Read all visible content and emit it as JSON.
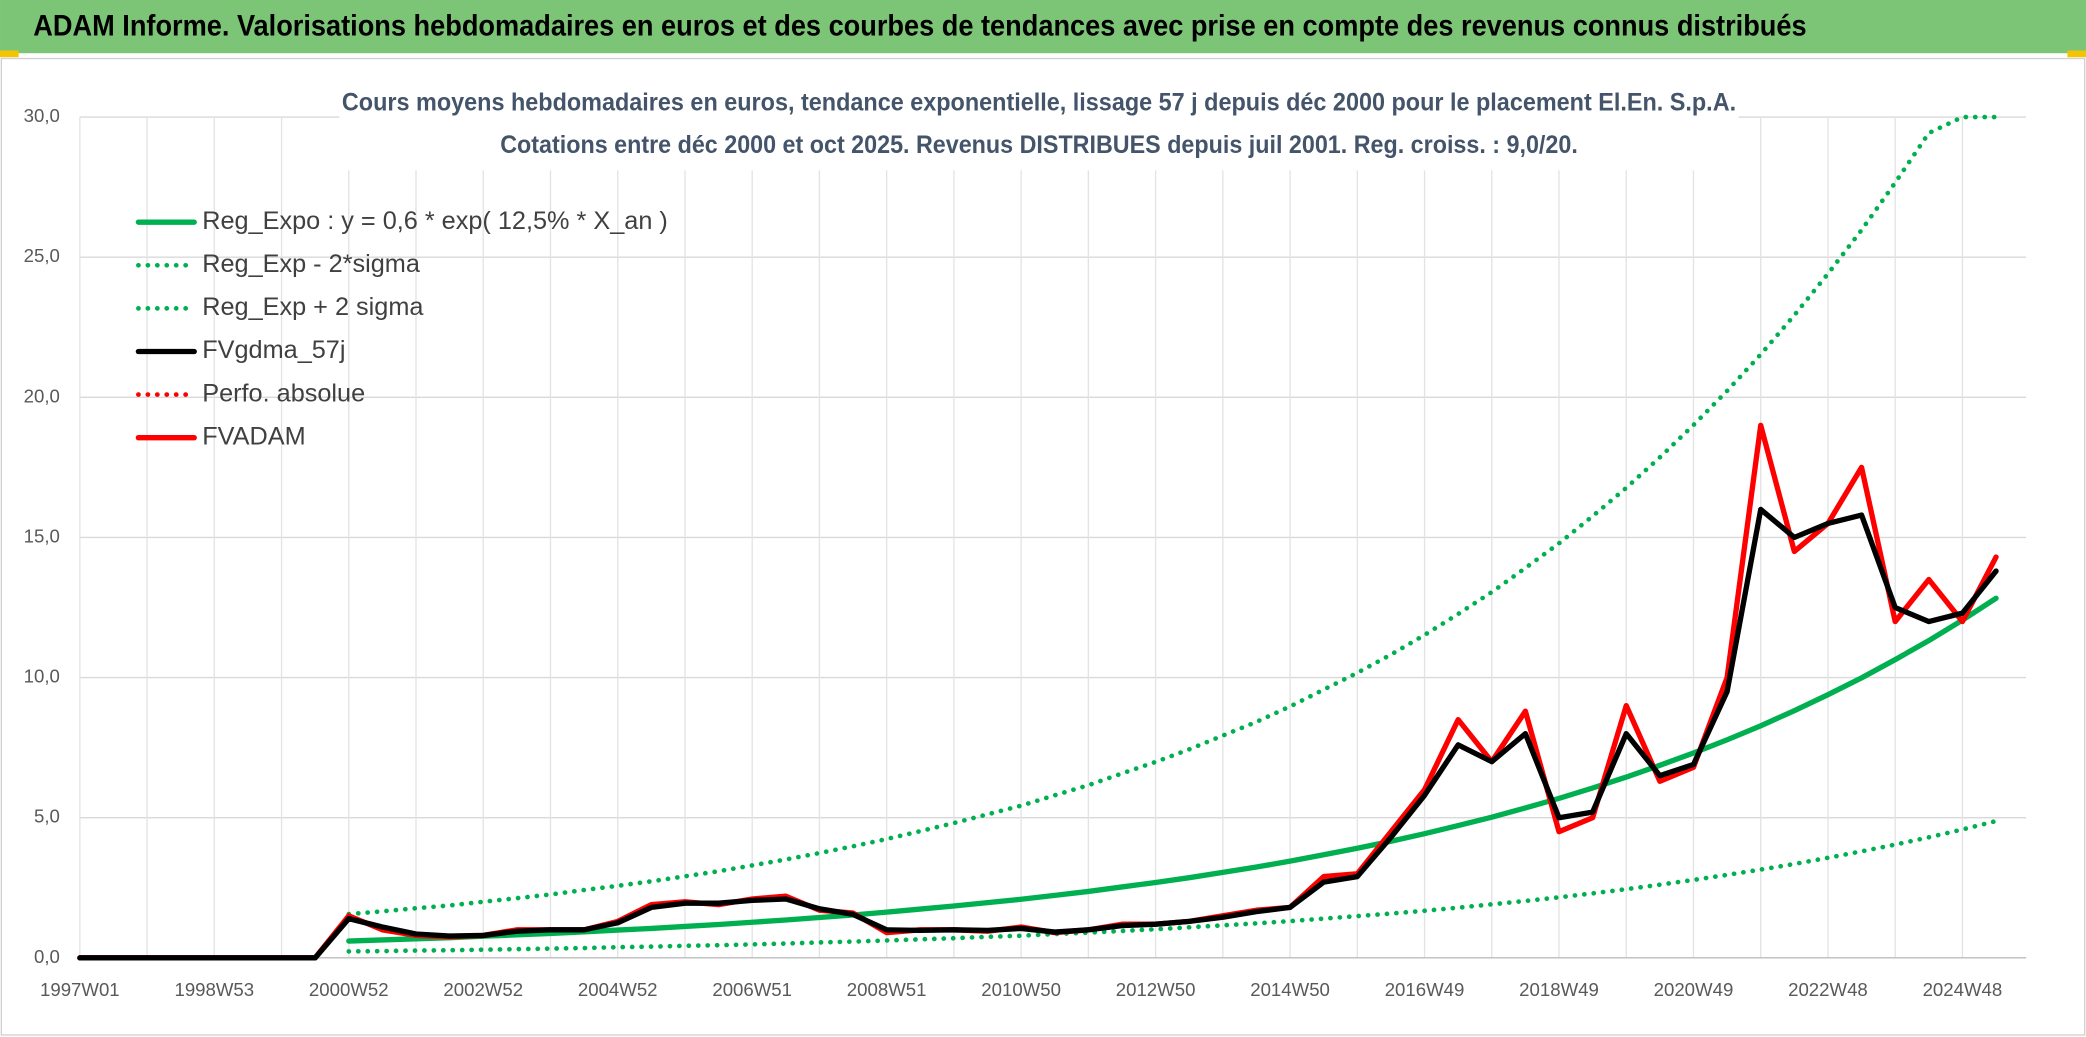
{
  "chart_data": {
    "type": "line",
    "header": "ADAM Informe. Valorisations hebdomadaires en euros et des courbes de tendances avec prise en compte des revenus connus distribués",
    "title": "Cours moyens hebdomadaires en euros, tendance exponentielle, lissage 57 j depuis déc 2000 pour le placement El.En. S.p.A.",
    "subtitle": "Cotations entre déc 2000 et oct 2025. Revenus DISTRIBUES depuis juil 2001. Reg. croiss. : 9,0/20.",
    "categories": [
      "1997W01",
      null,
      null,
      null,
      "1998W53",
      null,
      null,
      null,
      "2000W52",
      null,
      null,
      null,
      "2002W52",
      null,
      null,
      null,
      "2004W52",
      null,
      null,
      null,
      "2006W51",
      null,
      null,
      null,
      "2008W51",
      null,
      null,
      null,
      "2010W50",
      null,
      null,
      null,
      "2012W50",
      null,
      null,
      null,
      "2014W50",
      null,
      null,
      null,
      "2016W49",
      null,
      null,
      null,
      "2018W49",
      null,
      null,
      null,
      "2020W49",
      null,
      null,
      null,
      "2022W48",
      null,
      null,
      null,
      "2024W48",
      null
    ],
    "ylim": [
      0,
      30
    ],
    "yticks": [
      {
        "value": 0,
        "label": "0,0"
      },
      {
        "value": 5,
        "label": "5,0"
      },
      {
        "value": 10,
        "label": "10,0"
      },
      {
        "value": 15,
        "label": "15,0"
      },
      {
        "value": 20,
        "label": "20,0"
      },
      {
        "value": 25,
        "label": "25,0"
      },
      {
        "value": 30,
        "label": "30,0"
      }
    ],
    "grid": true,
    "legend": "top-left",
    "series": [
      {
        "name": "Reg_Expo : y = 0,6 * exp( 12,5% *  X_an )",
        "color": "#00b050",
        "style": "solid",
        "values": [
          null,
          null,
          null,
          null,
          null,
          null,
          null,
          null,
          0.6,
          0.64,
          0.68,
          0.72,
          0.77,
          0.82,
          0.87,
          0.93,
          0.99,
          1.05,
          1.12,
          1.19,
          1.27,
          1.35,
          1.44,
          1.53,
          1.63,
          1.74,
          1.85,
          1.97,
          2.09,
          2.23,
          2.37,
          2.53,
          2.69,
          2.86,
          3.05,
          3.24,
          3.45,
          3.68,
          3.91,
          4.16,
          4.43,
          4.72,
          5.02,
          5.35,
          5.69,
          6.06,
          6.45,
          6.87,
          7.31,
          7.78,
          8.28,
          8.82,
          9.39,
          9.99,
          10.64,
          11.32,
          12.05,
          12.83
        ]
      },
      {
        "name": "Reg_Exp - 2*sigma",
        "color": "#00b050",
        "style": "dotted",
        "values": [
          null,
          null,
          null,
          null,
          null,
          null,
          null,
          null,
          0.23,
          0.24,
          0.26,
          0.27,
          0.29,
          0.31,
          0.33,
          0.35,
          0.38,
          0.4,
          0.43,
          0.45,
          0.48,
          0.51,
          0.55,
          0.58,
          0.62,
          0.66,
          0.7,
          0.75,
          0.79,
          0.85,
          0.9,
          0.96,
          1.02,
          1.09,
          1.16,
          1.23,
          1.31,
          1.4,
          1.49,
          1.58,
          1.68,
          1.79,
          1.91,
          2.03,
          2.16,
          2.3,
          2.45,
          2.61,
          2.78,
          2.96,
          3.15,
          3.35,
          3.57,
          3.8,
          4.04,
          4.3,
          4.58,
          4.88
        ]
      },
      {
        "name": "Reg_Exp + 2 sigma",
        "color": "#00b050",
        "style": "dotted",
        "values": [
          null,
          null,
          null,
          null,
          null,
          null,
          null,
          null,
          1.56,
          1.66,
          1.77,
          1.87,
          2.0,
          2.13,
          2.26,
          2.42,
          2.57,
          2.73,
          2.91,
          3.09,
          3.3,
          3.51,
          3.74,
          3.98,
          4.24,
          4.52,
          4.81,
          5.12,
          5.43,
          5.8,
          6.16,
          6.58,
          6.99,
          7.44,
          7.93,
          8.42,
          8.97,
          9.57,
          10.17,
          10.82,
          11.52,
          12.27,
          13.05,
          13.91,
          14.79,
          15.76,
          16.77,
          17.86,
          19.01,
          20.23,
          21.53,
          22.93,
          24.41,
          25.97,
          27.66,
          29.43,
          30,
          30
        ]
      },
      {
        "name": "FVgdma_57j",
        "color": "#000000",
        "style": "solid",
        "values": [
          0,
          0,
          0,
          0,
          0,
          0,
          0,
          0,
          1.4,
          1.1,
          0.85,
          0.78,
          0.8,
          0.95,
          1.0,
          1.0,
          1.25,
          1.8,
          1.95,
          1.95,
          2.05,
          2.1,
          1.75,
          1.55,
          1.0,
          0.98,
          1.0,
          0.98,
          1.05,
          0.92,
          1.0,
          1.15,
          1.2,
          1.3,
          1.45,
          1.65,
          1.8,
          2.7,
          2.9,
          4.3,
          5.8,
          7.6,
          7.0,
          8.0,
          5.0,
          5.2,
          8.0,
          6.5,
          6.9,
          9.5,
          16.0,
          15.0,
          15.5,
          15.8,
          12.5,
          12.0,
          12.3,
          13.8
        ]
      },
      {
        "name": "Perfo. absolue",
        "color": "#ff0000",
        "style": "dotted",
        "values": [
          null,
          null,
          null,
          null,
          null,
          null,
          null,
          null,
          null,
          null,
          null,
          null,
          null,
          null,
          null,
          null,
          null,
          null,
          null,
          null,
          null,
          null,
          null,
          null,
          null,
          null,
          null,
          null,
          null,
          null,
          null,
          null,
          null,
          null,
          null,
          null,
          null,
          null,
          null,
          null,
          null,
          null,
          null,
          null,
          null,
          null,
          null,
          null,
          null,
          null,
          null,
          null,
          null,
          null,
          null,
          null,
          null,
          null
        ]
      },
      {
        "name": "FVADAM",
        "color": "#ff0000",
        "style": "solid",
        "values": [
          0,
          0,
          0,
          0,
          0,
          0,
          0,
          0,
          1.5,
          1.0,
          0.8,
          0.75,
          0.8,
          1.0,
          1.0,
          1.0,
          1.3,
          1.9,
          2.0,
          1.9,
          2.1,
          2.2,
          1.7,
          1.6,
          0.9,
          1.0,
          1.0,
          0.95,
          1.1,
          0.9,
          1.0,
          1.2,
          1.2,
          1.3,
          1.5,
          1.7,
          1.8,
          2.9,
          3.0,
          4.5,
          6.0,
          8.5,
          7.0,
          8.8,
          4.5,
          5.0,
          9.0,
          6.3,
          6.8,
          10.0,
          19.0,
          14.5,
          15.5,
          17.5,
          12.0,
          13.5,
          12.0,
          14.3
        ]
      }
    ]
  }
}
